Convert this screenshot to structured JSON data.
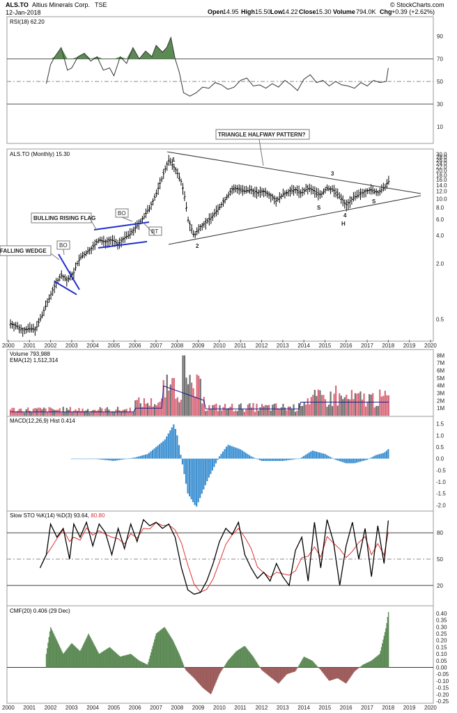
{
  "header": {
    "symbol": "ALS.TO",
    "company": "Altius Minerals Corp.",
    "exchange": "TSE",
    "date": "12-Jan-2018",
    "watermark": "© StockCharts.com",
    "open_label": "Open",
    "open": "14.95",
    "high_label": "High",
    "high": "15.50",
    "low_label": "Low",
    "low": "14.22",
    "close_label": "Close",
    "close": "15.30",
    "volume_label": "Volume",
    "volume": "794.0K",
    "chg_label": "Chg",
    "chg": "+0.39 (+2.62%)"
  },
  "chart_data": [
    {
      "type": "line",
      "title": "RSI(18) 62.20",
      "yticks": [
        10,
        30,
        50,
        70,
        90
      ],
      "ylim": [
        0,
        100
      ],
      "reference_lines": [
        30,
        50,
        70
      ],
      "x": [
        2001.8,
        2002.0,
        2002.2,
        2002.5,
        2002.8,
        2003.0,
        2003.3,
        2003.6,
        2003.9,
        2004.2,
        2004.5,
        2004.8,
        2005.0,
        2005.3,
        2005.6,
        2005.9,
        2006.2,
        2006.5,
        2006.8,
        2007.0,
        2007.3,
        2007.5,
        2007.7,
        2007.9,
        2008.1,
        2008.3,
        2008.6,
        2008.9,
        2009.2,
        2009.5,
        2009.8,
        2010.1,
        2010.4,
        2010.7,
        2011.0,
        2011.3,
        2011.6,
        2011.9,
        2012.2,
        2012.5,
        2012.8,
        2013.1,
        2013.4,
        2013.7,
        2014.0,
        2014.3,
        2014.6,
        2014.9,
        2015.2,
        2015.5,
        2015.8,
        2016.1,
        2016.4,
        2016.7,
        2017.0,
        2017.3,
        2017.6,
        2017.9,
        2018.0
      ],
      "values": [
        48,
        65,
        72,
        80,
        60,
        62,
        72,
        75,
        68,
        72,
        60,
        62,
        55,
        72,
        66,
        80,
        70,
        77,
        72,
        82,
        76,
        80,
        89,
        70,
        58,
        40,
        37,
        40,
        45,
        44,
        49,
        47,
        43,
        45,
        51,
        53,
        46,
        47,
        44,
        48,
        45,
        51,
        47,
        42,
        52,
        56,
        49,
        51,
        46,
        50,
        47,
        46,
        44,
        49,
        46,
        51,
        49,
        50,
        62
      ]
    },
    {
      "type": "line",
      "title": "ALS.TO (Monthly) 15.30",
      "yscale": "log",
      "yticks": [
        0.5,
        2.0,
        4.0,
        6.0,
        8.0,
        10.0,
        12.0,
        14.0,
        16.0,
        18.0,
        20.0,
        22.0,
        24.0,
        26.0,
        28.0,
        30.0
      ],
      "xticks": [
        "2000",
        "2001",
        "2002",
        "2003",
        "2004",
        "2005",
        "2006",
        "2007",
        "2008",
        "2009",
        "2010",
        "2011",
        "2012",
        "2013",
        "2014",
        "2015",
        "2016",
        "2017",
        "2018",
        "2019",
        "2020"
      ],
      "x": [
        2000.1,
        2000.4,
        2000.7,
        2001.0,
        2001.3,
        2001.6,
        2001.9,
        2002.2,
        2002.5,
        2002.8,
        2003.1,
        2003.4,
        2003.7,
        2004.0,
        2004.3,
        2004.6,
        2004.9,
        2005.2,
        2005.5,
        2005.8,
        2006.1,
        2006.4,
        2006.7,
        2007.0,
        2007.3,
        2007.6,
        2007.9,
        2008.2,
        2008.5,
        2008.8,
        2009.1,
        2009.4,
        2009.7,
        2010.0,
        2010.3,
        2010.6,
        2010.9,
        2011.2,
        2011.5,
        2011.8,
        2012.1,
        2012.4,
        2012.7,
        2013.0,
        2013.3,
        2013.6,
        2013.9,
        2014.2,
        2014.5,
        2014.8,
        2015.1,
        2015.4,
        2015.7,
        2016.0,
        2016.3,
        2016.6,
        2016.9,
        2017.2,
        2017.5,
        2017.8,
        2018.0
      ],
      "values": [
        0.45,
        0.42,
        0.38,
        0.4,
        0.39,
        0.55,
        0.8,
        1.15,
        1.5,
        1.3,
        1.6,
        2.3,
        2.6,
        3.0,
        3.6,
        3.4,
        3.6,
        3.2,
        3.8,
        4.2,
        5.1,
        6.2,
        8.0,
        11.0,
        17.0,
        26.0,
        21.0,
        15.0,
        6.0,
        3.9,
        5.0,
        5.6,
        6.6,
        8.0,
        10.0,
        12.5,
        13.0,
        12.0,
        12.5,
        11.5,
        12.0,
        11.0,
        9.5,
        11.0,
        12.0,
        12.5,
        11.5,
        13.0,
        12.0,
        11.0,
        13.0,
        12.5,
        10.5,
        8.5,
        10.0,
        11.0,
        12.0,
        12.5,
        11.5,
        13.0,
        15.3
      ],
      "annotations": [
        "TRIANGLE HALFWAY PATTERN?",
        "BULLING RISING FLAG",
        "FALLING WEDGE",
        "BO",
        "BO",
        "BT",
        "1",
        "2",
        "3",
        "4",
        "S",
        "H",
        "S"
      ]
    },
    {
      "type": "bar",
      "title": "Volume 793,988",
      "series_note": "EMA(12) 1,512,314",
      "yticks_labels": [
        "1M",
        "2M",
        "3M",
        "4M",
        "5M",
        "6M",
        "7M",
        "8M"
      ],
      "ylim": [
        0,
        8.5
      ]
    },
    {
      "type": "bar",
      "title": "MACD(12,26,9) Hist 0.414",
      "yticks": [
        -2.0,
        -1.5,
        -1.0,
        -0.5,
        0.0,
        0.5,
        1.0,
        1.5
      ],
      "ylim": [
        -2.2,
        1.7
      ]
    },
    {
      "type": "line",
      "title_prefix": "Slow STO %K(14) %D(3)",
      "k_value": "93.64",
      "d_value": "80.80",
      "yticks": [
        20,
        50,
        80
      ],
      "ylim": [
        0,
        100
      ]
    },
    {
      "type": "area",
      "title": "CMF(20) 0.406 (29 Dec)",
      "yticks": [
        -0.25,
        -0.2,
        -0.15,
        -0.1,
        -0.05,
        0.0,
        0.05,
        0.1,
        0.15,
        0.2,
        0.25,
        0.3,
        0.35,
        0.4
      ],
      "ylim": [
        -0.25,
        0.42
      ],
      "xticks": [
        "2000",
        "2001",
        "2002",
        "2003",
        "2004",
        "2005",
        "2006",
        "2007",
        "2008",
        "2009",
        "2010",
        "2011",
        "2012",
        "2013",
        "2014",
        "2015",
        "2016",
        "2017",
        "2018",
        "2019",
        "2020"
      ]
    }
  ],
  "colors": {
    "up_bar": "#d9687a",
    "down_bar": "#707070",
    "ema": "#1a1a8c",
    "macd": "#3b8fd1",
    "sto_k": "#000000",
    "sto_d": "#e03030",
    "fill_green": "#5c8a55",
    "fill_red": "#9c5a5a",
    "annot_blue": "#1f2fcc"
  }
}
